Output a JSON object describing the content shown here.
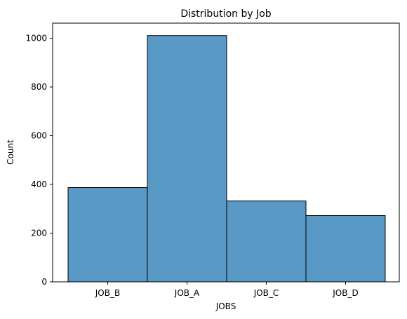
{
  "chart_data": {
    "type": "bar",
    "title": "Distribution by Job",
    "xlabel": "JOBS",
    "ylabel": "Count",
    "categories": [
      "JOB_B",
      "JOB_A",
      "JOB_C",
      "JOB_D"
    ],
    "values": [
      387,
      1011,
      332,
      272
    ],
    "ylim": [
      0,
      1062
    ],
    "yticks": [
      0,
      200,
      400,
      600,
      800,
      1000
    ],
    "grid": false,
    "legend": "none",
    "bar_color": "#5899c6",
    "edge_color": "#000000"
  }
}
